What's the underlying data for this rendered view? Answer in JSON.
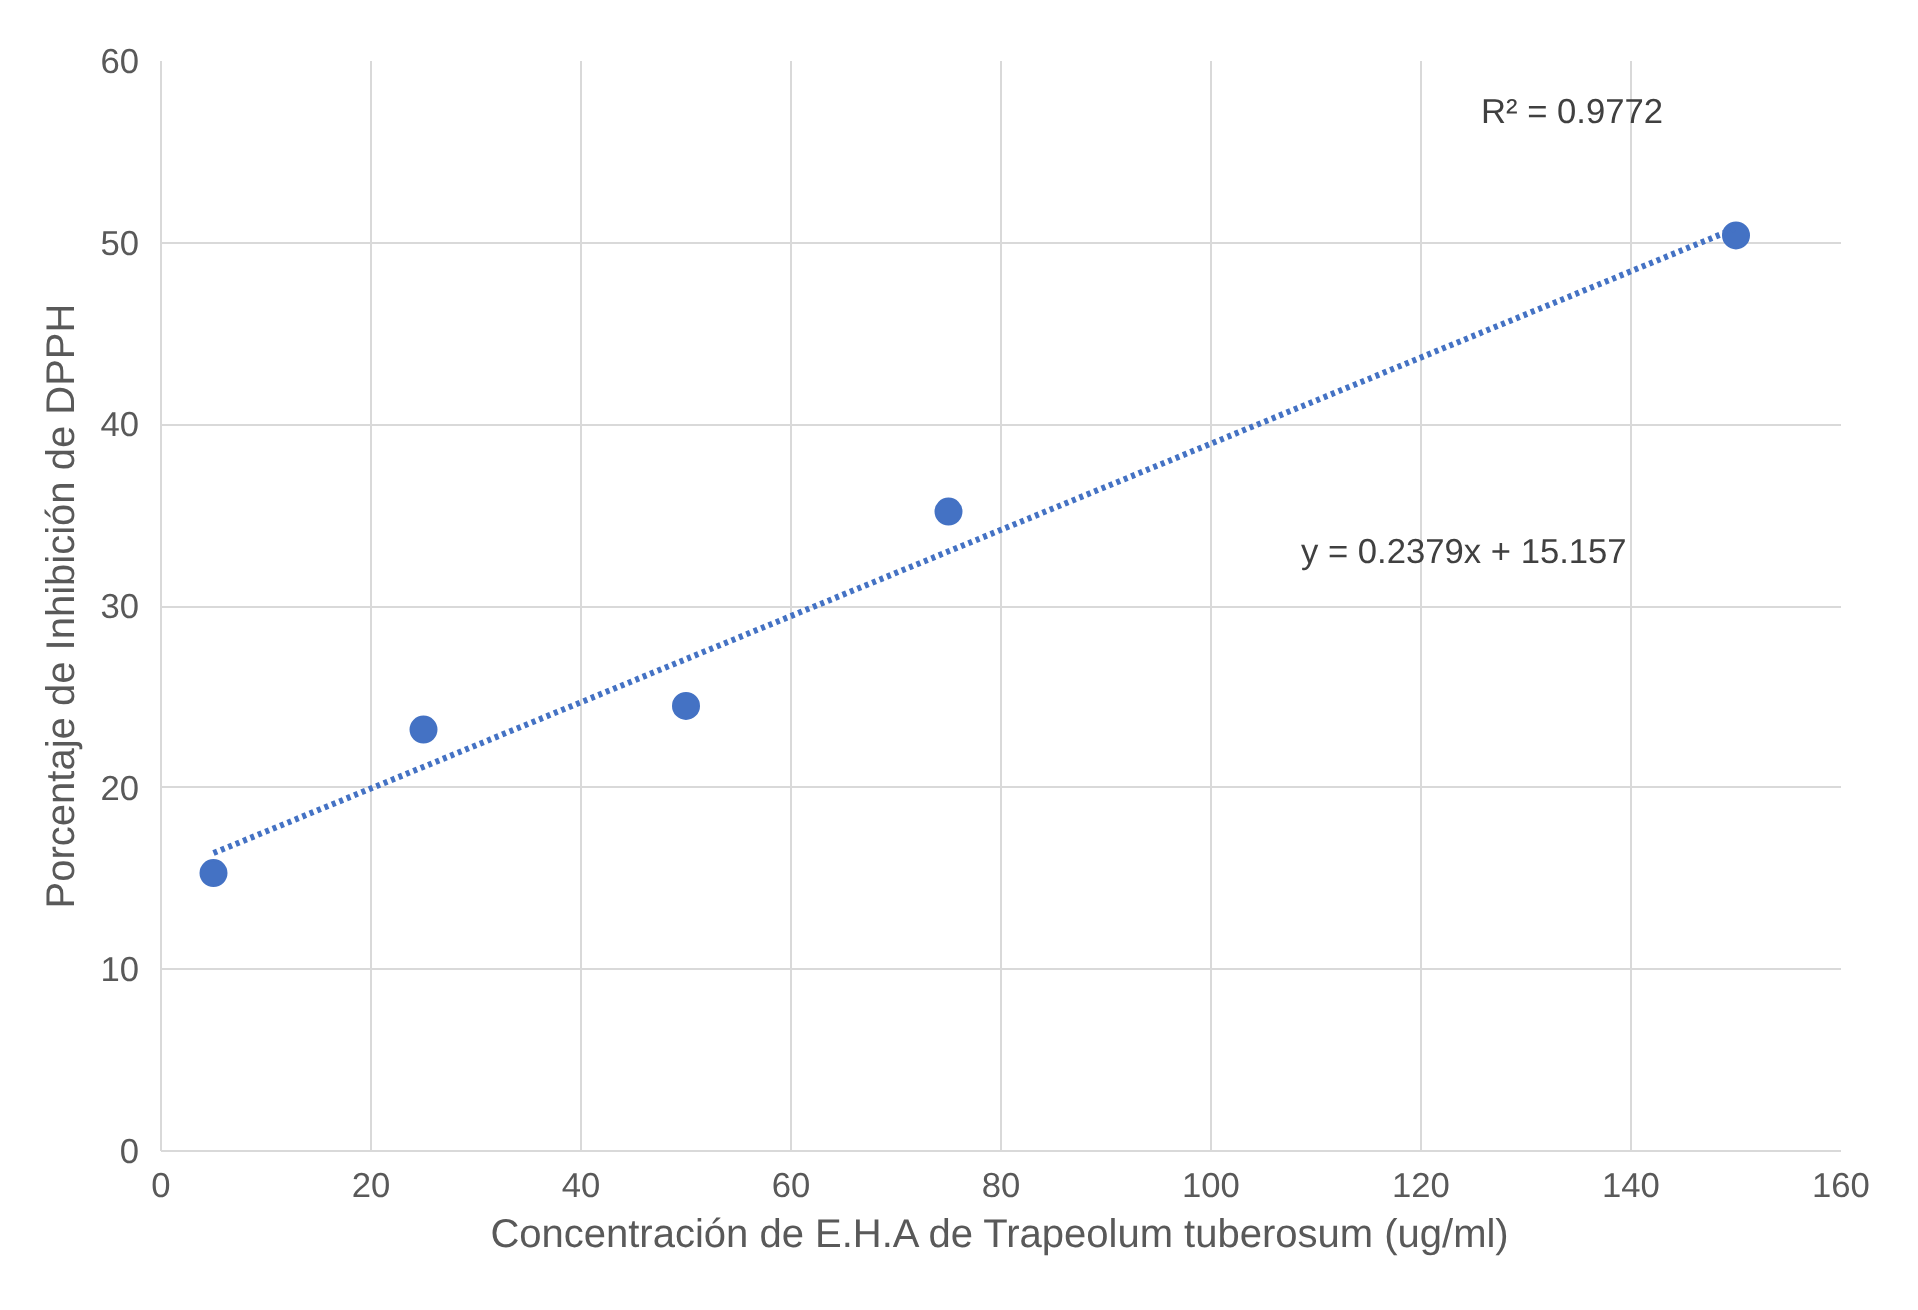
{
  "chart_data": {
    "type": "scatter",
    "xlabel": "Concentración de E.H.A de Trapeolum tuberosum (ug/ml)",
    "ylabel": "Porcentaje de Inhibición de DPPH",
    "series": [
      {
        "color": "#4472c4",
        "marker": "circle",
        "x": [
          5,
          25,
          50,
          75,
          150
        ],
        "values": [
          15.3,
          23.2,
          24.5,
          35.2,
          50.4
        ]
      },
      {
        "type": "line",
        "color": "#4472c4",
        "marker": "none",
        "line_style": "dotted",
        "x": [
          5,
          150
        ],
        "values": [
          16.4,
          50.8
        ]
      }
    ],
    "annotations": [
      "R² = 0.9772",
      "y = 0.2379x + 15.157"
    ],
    "xlim": [
      0,
      160
    ],
    "ylim": [
      0,
      60
    ],
    "xticks": [
      0,
      20,
      40,
      60,
      80,
      100,
      120,
      140,
      160
    ],
    "yticks": [
      0,
      10,
      20,
      30,
      40,
      50,
      60
    ],
    "grid": true
  }
}
